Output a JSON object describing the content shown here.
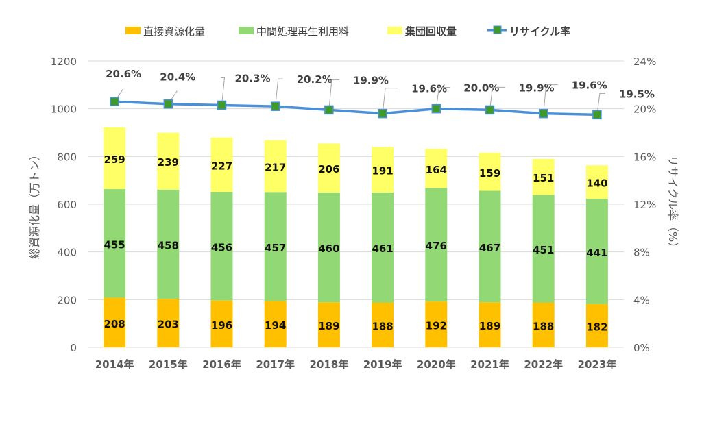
{
  "chart_data": {
    "type": "bar",
    "stacked": true,
    "categories": [
      "2014年",
      "2015年",
      "2016年",
      "2017年",
      "2018年",
      "2019年",
      "2020年",
      "2021年",
      "2022年",
      "2023年"
    ],
    "series": [
      {
        "name": "直接資源化量",
        "type": "bar",
        "color": "#FFC000",
        "values": [
          208,
          203,
          196,
          194,
          189,
          188,
          192,
          189,
          188,
          182
        ]
      },
      {
        "name": "中間処理再生利用料",
        "type": "bar",
        "color": "#92D975",
        "values": [
          455,
          458,
          456,
          457,
          460,
          461,
          476,
          467,
          451,
          441
        ]
      },
      {
        "name": "集団回収量",
        "type": "bar",
        "color": "#FFFF66",
        "values": [
          259,
          239,
          227,
          217,
          206,
          191,
          164,
          159,
          151,
          140
        ]
      },
      {
        "name": "リサイクル率",
        "type": "line",
        "axis": "right",
        "color": "#4A90D9",
        "marker_color": "#3F9A2A",
        "values": [
          20.6,
          20.4,
          20.3,
          20.2,
          19.9,
          19.6,
          20.0,
          19.9,
          19.6,
          19.5
        ]
      }
    ],
    "ylabel": "総資源化量（万トン）",
    "y2label": "リサイクル率（%）",
    "ylim": [
      0,
      1200
    ],
    "yticks": [
      "0",
      "200",
      "400",
      "600",
      "800",
      "1000",
      "1200"
    ],
    "y2lim": [
      0,
      24
    ],
    "y2ticks": [
      "0%",
      "4%",
      "8%",
      "12%",
      "16%",
      "20%",
      "24%"
    ],
    "grid": true,
    "legend": "top"
  }
}
